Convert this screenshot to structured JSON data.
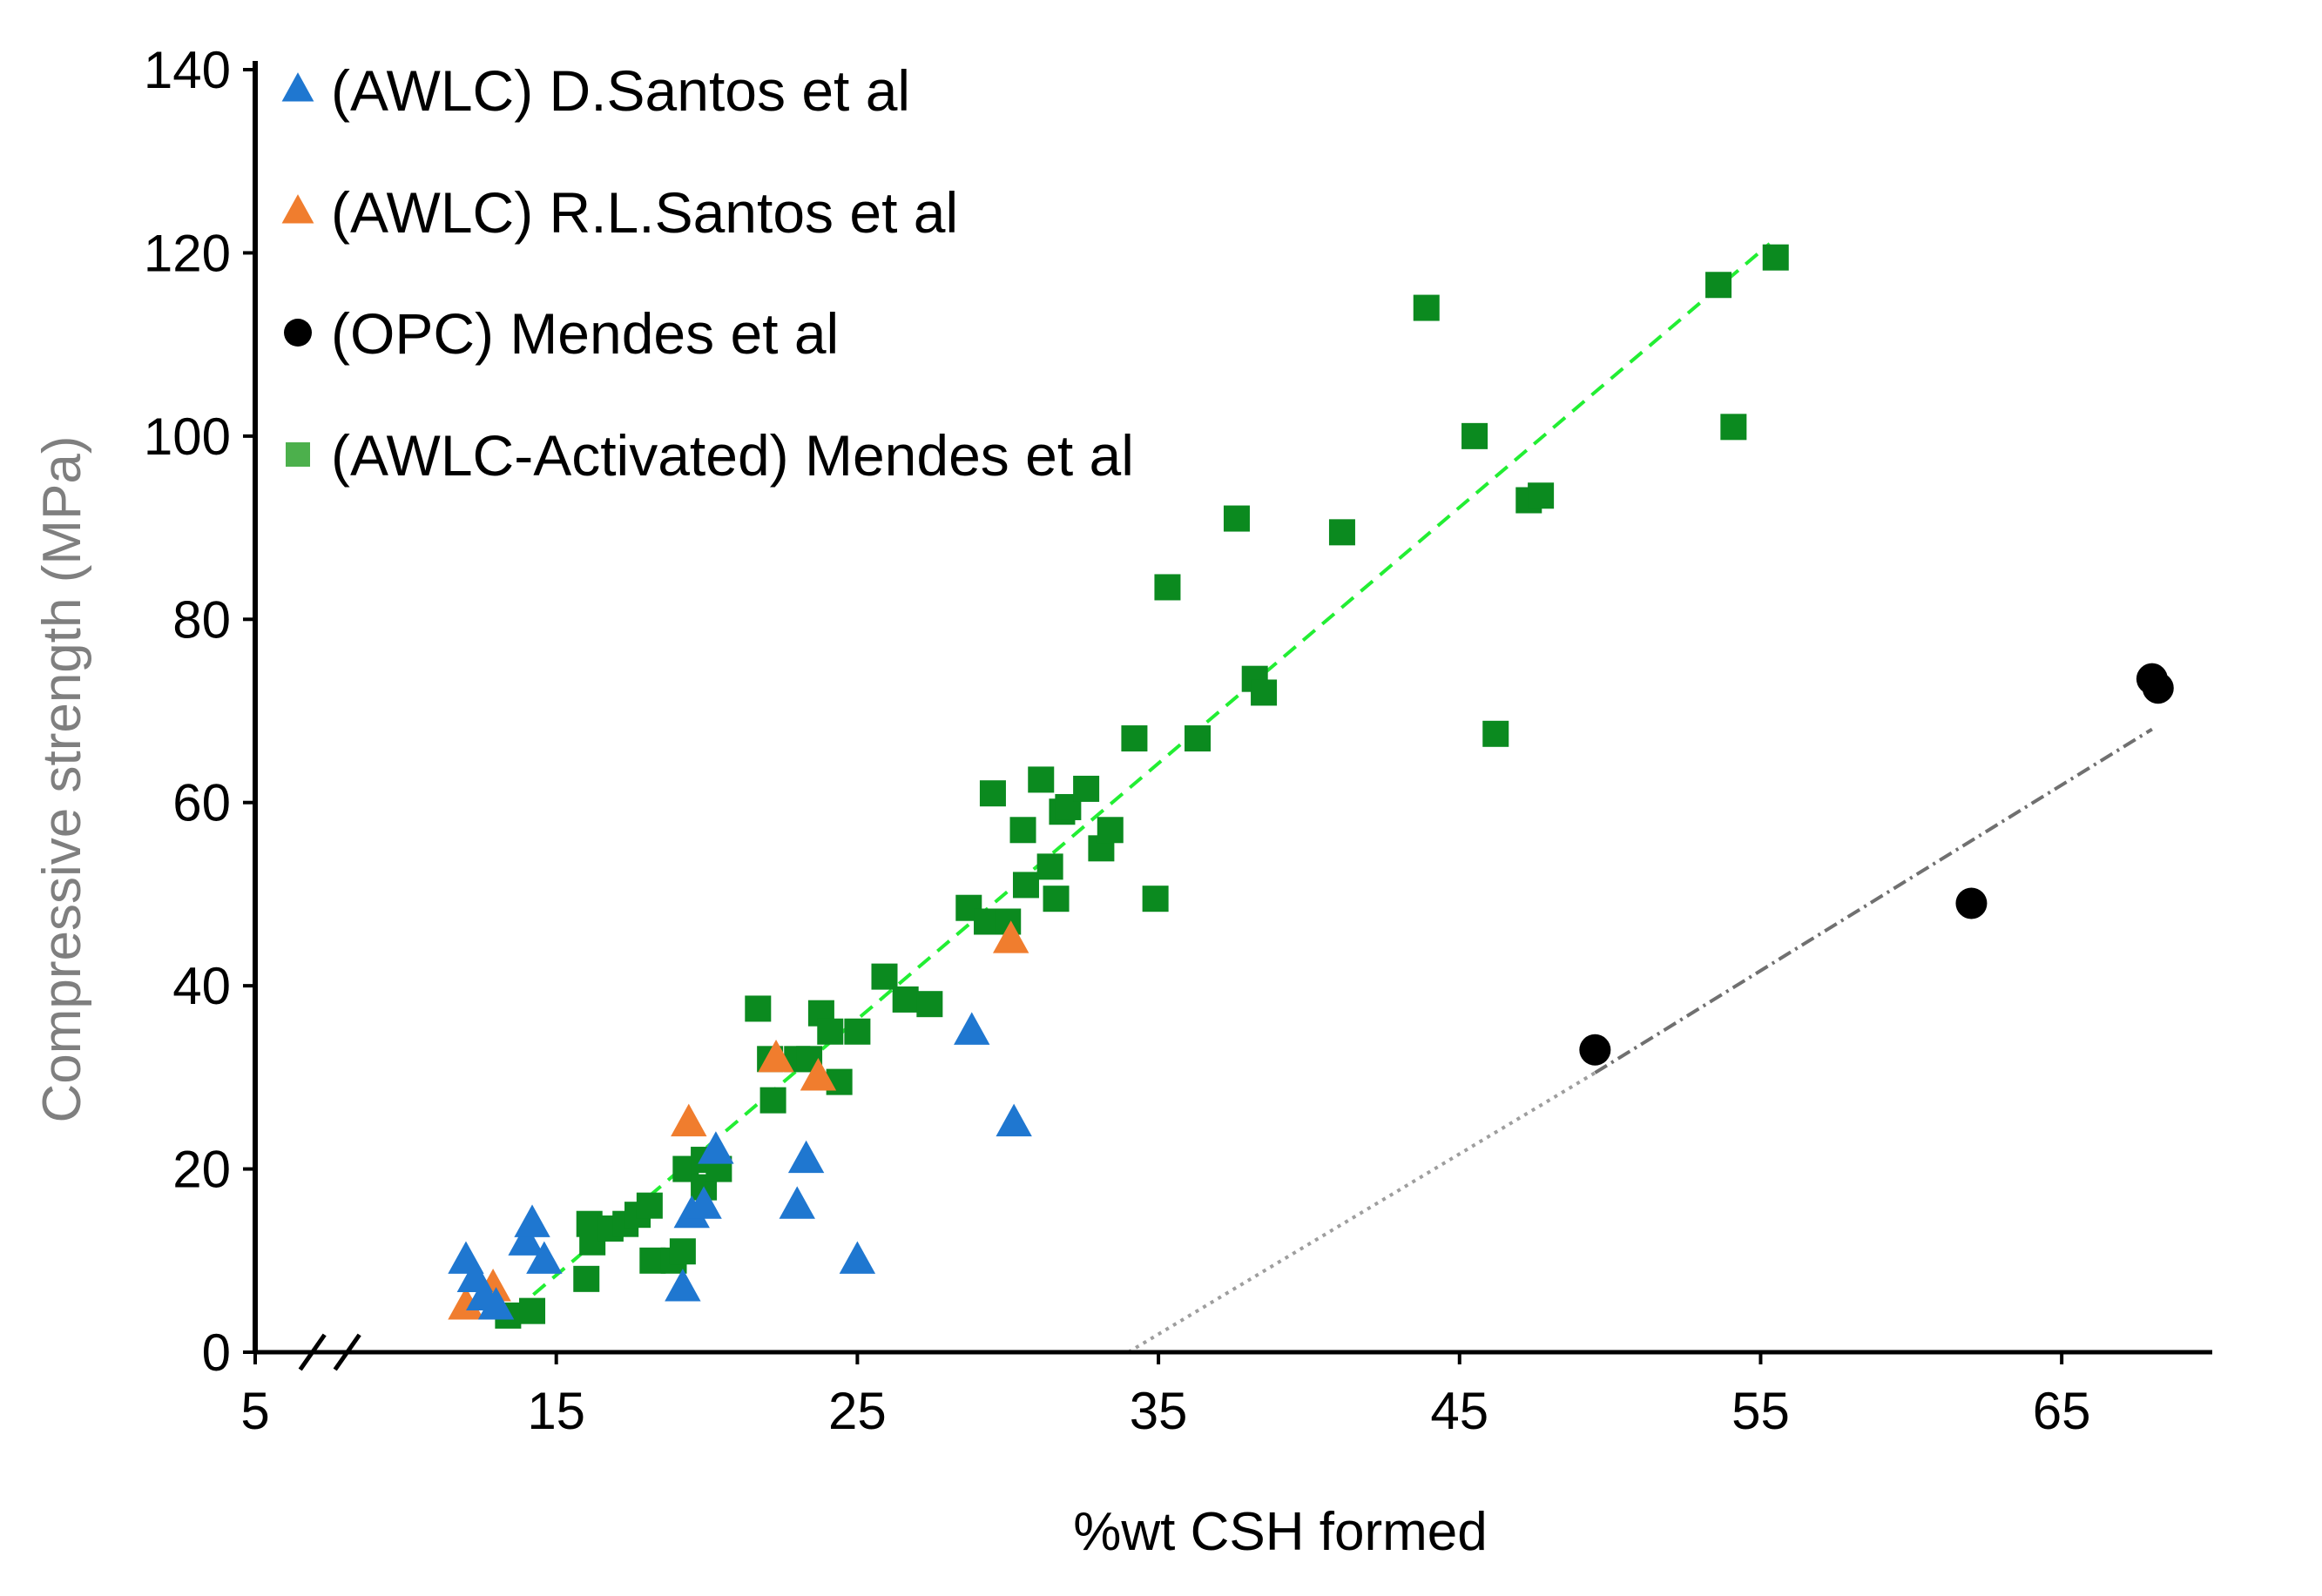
{
  "chart_data": {
    "type": "scatter",
    "title": "",
    "xlabel": "%wt  CSH formed",
    "ylabel": "Compressive strength (MPa)",
    "xlim": [
      5,
      70
    ],
    "ylim": [
      0,
      140
    ],
    "xticks": [
      5,
      15,
      25,
      35,
      45,
      55,
      65
    ],
    "yticks": [
      0,
      20,
      40,
      60,
      80,
      100,
      120,
      140
    ],
    "x_axis_break": true,
    "grid": false,
    "legend_position": "top-left",
    "colors": {
      "d_santos": "#1f77d0",
      "rl_santos": "#f07d2e",
      "opc": "#000000",
      "activated": "#0b8a1f",
      "activated_legend": "#4cb04c",
      "trend_activated": "#22ee33",
      "trend_opc": "#9e9e9e",
      "y_title": "#7f7f7f"
    },
    "series": [
      {
        "name": "(AWLC) D.Santos et al",
        "marker": "triangle",
        "color": "#1f77d0",
        "points": [
          [
            12.0,
            10
          ],
          [
            12.3,
            8
          ],
          [
            12.6,
            6
          ],
          [
            13.0,
            5
          ],
          [
            14.0,
            12
          ],
          [
            14.2,
            14
          ],
          [
            14.6,
            10
          ],
          [
            19.2,
            7
          ],
          [
            19.5,
            15
          ],
          [
            19.9,
            16
          ],
          [
            20.3,
            22
          ],
          [
            23.0,
            16
          ],
          [
            23.3,
            21
          ],
          [
            25.0,
            10
          ],
          [
            28.8,
            35
          ],
          [
            30.2,
            25
          ]
        ]
      },
      {
        "name": "(AWLC) R.L.Santos et al",
        "marker": "triangle",
        "color": "#f07d2e",
        "points": [
          [
            12.0,
            5
          ],
          [
            12.9,
            7
          ],
          [
            19.4,
            25
          ],
          [
            22.3,
            32
          ],
          [
            23.7,
            30
          ],
          [
            30.1,
            45
          ]
        ]
      },
      {
        "name": "(OPC) Mendes et al",
        "marker": "circle",
        "color": "#000000",
        "points": [
          [
            49.5,
            33
          ],
          [
            62.0,
            49
          ],
          [
            68.0,
            73.5
          ],
          [
            68.2,
            72.5
          ]
        ]
      },
      {
        "name": "(AWLC-Activated) Mendes et al",
        "marker": "square",
        "color": "#0b8a1f",
        "points": [
          [
            13.4,
            4
          ],
          [
            14.2,
            4.5
          ],
          [
            16.0,
            8
          ],
          [
            16.1,
            14
          ],
          [
            16.2,
            12
          ],
          [
            16.8,
            13.5
          ],
          [
            17.3,
            14
          ],
          [
            17.7,
            15
          ],
          [
            18.1,
            16
          ],
          [
            18.2,
            10
          ],
          [
            18.9,
            10
          ],
          [
            19.2,
            11
          ],
          [
            19.3,
            20
          ],
          [
            19.9,
            21
          ],
          [
            19.9,
            18
          ],
          [
            20.4,
            20
          ],
          [
            21.7,
            37.5
          ],
          [
            22.1,
            32
          ],
          [
            22.2,
            27.5
          ],
          [
            23.0,
            32
          ],
          [
            23.4,
            32
          ],
          [
            23.8,
            37
          ],
          [
            24.1,
            35
          ],
          [
            24.4,
            29.5
          ],
          [
            25.0,
            35
          ],
          [
            25.9,
            41
          ],
          [
            26.6,
            38.5
          ],
          [
            27.4,
            38
          ],
          [
            28.7,
            48.5
          ],
          [
            29.3,
            47
          ],
          [
            29.5,
            61
          ],
          [
            30.0,
            47
          ],
          [
            30.5,
            57
          ],
          [
            30.6,
            51
          ],
          [
            31.1,
            62.5
          ],
          [
            31.4,
            53
          ],
          [
            31.6,
            49.5
          ],
          [
            31.8,
            59
          ],
          [
            32.0,
            59.5
          ],
          [
            32.6,
            61.5
          ],
          [
            33.1,
            55
          ],
          [
            33.4,
            57
          ],
          [
            34.2,
            67
          ],
          [
            34.9,
            49.5
          ],
          [
            35.3,
            83.5
          ],
          [
            36.3,
            67
          ],
          [
            37.6,
            91
          ],
          [
            38.2,
            73.5
          ],
          [
            38.5,
            72
          ],
          [
            41.1,
            89.5
          ],
          [
            43.9,
            114
          ],
          [
            45.5,
            100
          ],
          [
            46.2,
            67.5
          ],
          [
            47.3,
            93
          ],
          [
            47.7,
            93.5
          ],
          [
            53.6,
            116.5
          ],
          [
            54.1,
            101
          ],
          [
            55.5,
            119.5
          ]
        ]
      }
    ],
    "trendlines": [
      {
        "series": "(AWLC-Activated) Mendes et al",
        "style": "dashed",
        "color": "#22ee33",
        "from": [
          13.6,
          4.5
        ],
        "to": [
          55.3,
          121
        ]
      },
      {
        "series": "(OPC) Mendes et al",
        "style": "dotted",
        "color": "#9e9e9e",
        "from": [
          34.0,
          0
        ],
        "to": [
          49.5,
          30.5
        ]
      },
      {
        "series": "(OPC) Mendes et al",
        "style": "dash-dot",
        "color": "#707070",
        "from": [
          49.5,
          30.5
        ],
        "to": [
          68.0,
          68
        ]
      }
    ]
  }
}
